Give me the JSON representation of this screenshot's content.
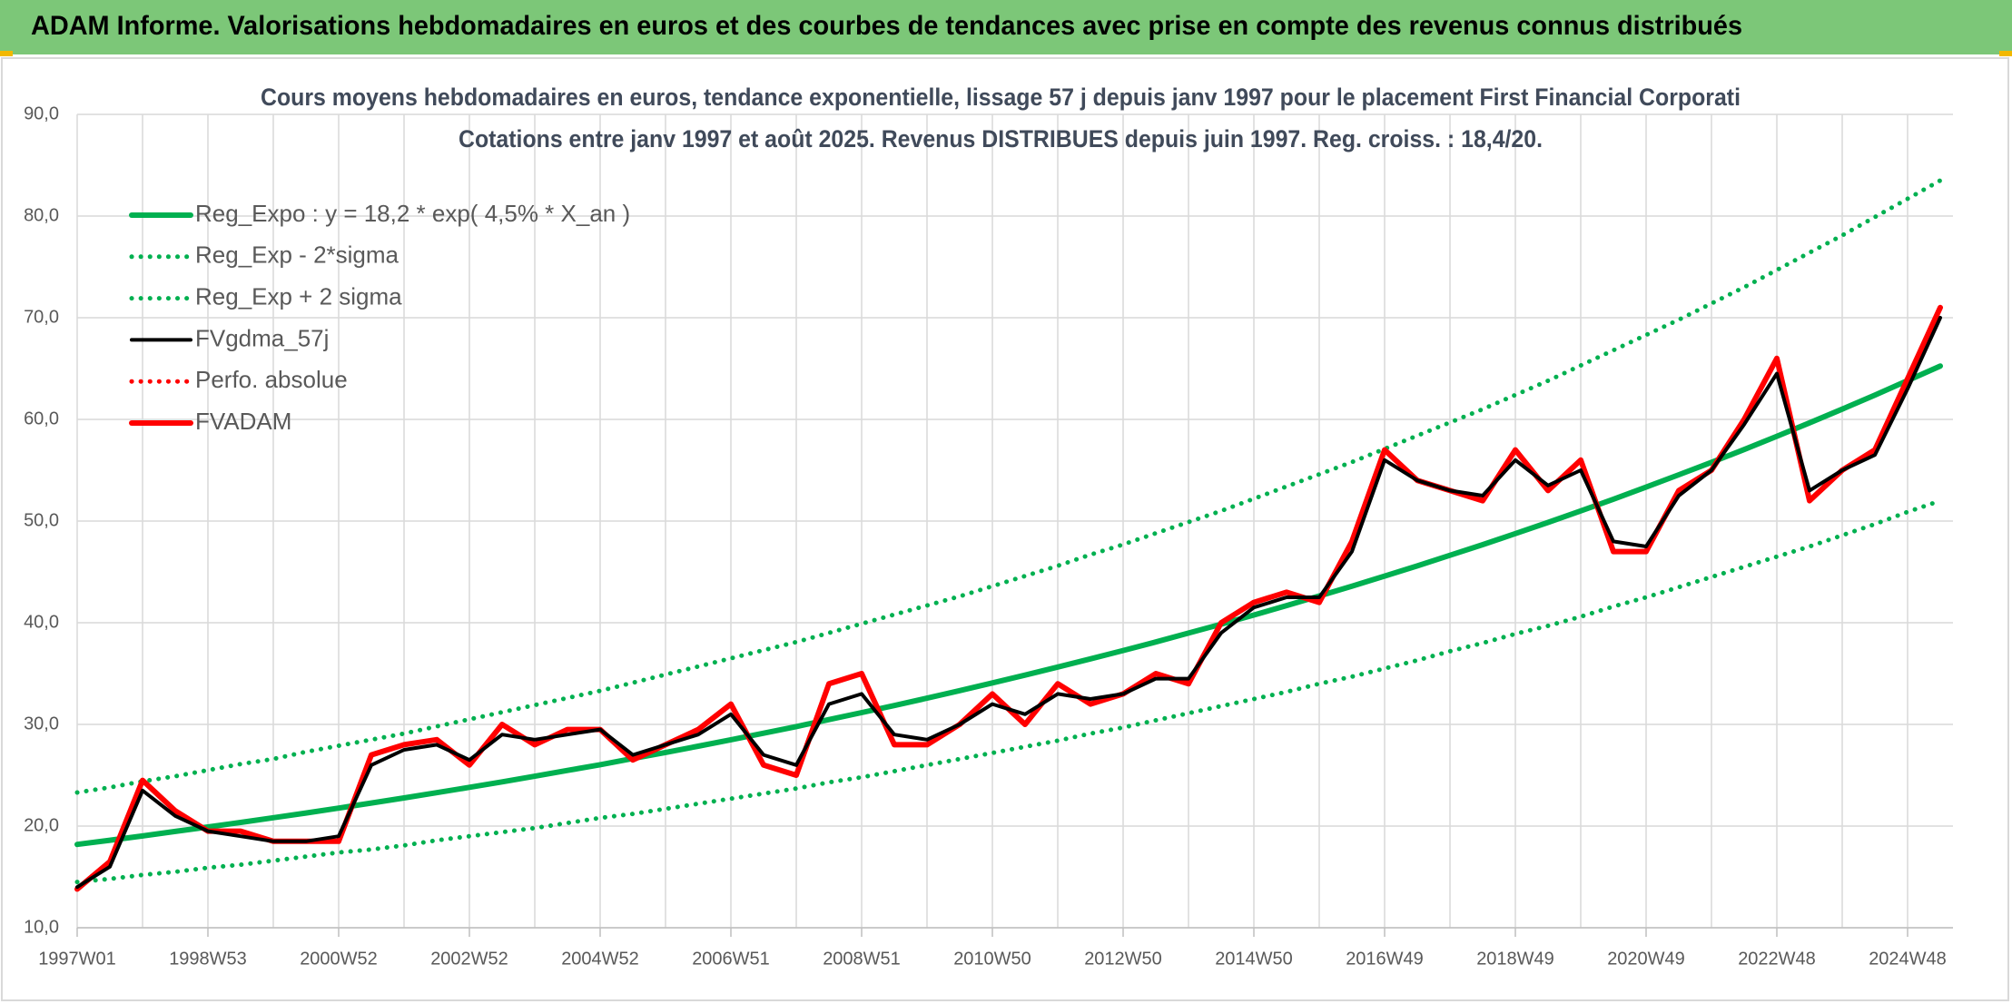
{
  "header": {
    "title": "ADAM Informe. Valorisations hebdomadaires en euros et des courbes de tendances avec prise en compte des revenus connus distribués"
  },
  "chart_data": {
    "type": "line",
    "title": "Cours moyens hebdomadaires en euros, tendance exponentielle, lissage 57 j depuis janv 1997 pour le placement First Financial Corporati",
    "subtitle": "Cotations entre janv 1997 et août 2025. Revenus DISTRIBUES depuis juin 1997. Reg. croiss. : 18,4/20.",
    "categories": [
      "1997W01",
      null,
      null,
      null,
      "1998W53",
      null,
      null,
      null,
      "2000W52",
      null,
      null,
      null,
      "2002W52",
      null,
      null,
      null,
      "2004W52",
      null,
      null,
      null,
      "2006W51",
      null,
      null,
      null,
      "2008W51",
      null,
      null,
      null,
      "2010W50",
      null,
      null,
      null,
      "2012W50",
      null,
      null,
      null,
      "2014W50",
      null,
      null,
      null,
      "2016W49",
      null,
      null,
      null,
      "2018W49",
      null,
      null,
      null,
      "2020W49",
      null,
      null,
      null,
      "2022W48",
      null,
      null,
      null,
      "2024W48",
      null
    ],
    "ylim": [
      10,
      90
    ],
    "yticks": [
      {
        "value": 10,
        "label": "10,0"
      },
      {
        "value": 20,
        "label": "20,0"
      },
      {
        "value": 30,
        "label": "30,0"
      },
      {
        "value": 40,
        "label": "40,0"
      },
      {
        "value": 50,
        "label": "50,0"
      },
      {
        "value": 60,
        "label": "60,0"
      },
      {
        "value": 70,
        "label": "70,0"
      },
      {
        "value": 80,
        "label": "80,0"
      },
      {
        "value": 90,
        "label": "90,0"
      }
    ],
    "grid": true,
    "legend": "upper left",
    "series": [
      {
        "name": "Reg_Expo : y = 18,2 * exp( 4,5% *  X_an )",
        "color": "#00b050",
        "dash": "solid",
        "values": [
          18.2,
          18.61,
          19.03,
          19.47,
          19.91,
          20.36,
          20.82,
          21.29,
          21.77,
          22.27,
          22.77,
          23.29,
          23.81,
          24.35,
          24.9,
          25.47,
          26.04,
          26.64,
          27.24,
          27.86,
          28.49,
          29.13,
          29.79,
          30.47,
          31.16,
          31.86,
          32.58,
          33.32,
          34.08,
          34.85,
          35.64,
          36.45,
          37.27,
          38.11,
          38.98,
          39.86,
          40.76,
          41.69,
          42.63,
          43.6,
          44.59,
          45.59,
          46.63,
          47.68,
          48.77,
          49.87,
          51.0,
          52.15,
          53.34,
          54.55,
          55.78,
          57.04,
          58.34,
          59.66,
          61.01,
          62.39,
          63.81,
          65.25
        ]
      },
      {
        "name": "Reg_Exp - 2*sigma",
        "color": "#00b050",
        "dash": "dotted",
        "values": [
          14.5,
          14.8,
          15.2,
          15.5,
          15.9,
          16.2,
          16.6,
          17.0,
          17.4,
          17.7,
          18.1,
          18.6,
          19.0,
          19.4,
          19.8,
          20.3,
          20.8,
          21.2,
          21.7,
          22.2,
          22.7,
          23.2,
          23.7,
          24.3,
          24.8,
          25.4,
          26.0,
          26.6,
          27.2,
          27.8,
          28.4,
          29.1,
          29.7,
          30.4,
          31.1,
          31.8,
          32.5,
          33.2,
          34.0,
          34.7,
          35.5,
          36.3,
          37.2,
          38.0,
          38.9,
          39.7,
          40.6,
          41.6,
          42.5,
          43.5,
          44.5,
          45.5,
          46.5,
          47.5,
          48.6,
          49.7,
          50.9,
          52.0
        ]
      },
      {
        "name": "Reg_Exp + 2 sigma",
        "color": "#00b050",
        "dash": "dotted",
        "values": [
          23.3,
          23.8,
          24.4,
          24.9,
          25.5,
          26.1,
          26.6,
          27.3,
          27.9,
          28.5,
          29.1,
          29.8,
          30.5,
          31.2,
          31.9,
          32.6,
          33.3,
          34.1,
          34.9,
          35.7,
          36.5,
          37.3,
          38.1,
          39.0,
          39.9,
          40.8,
          41.7,
          42.6,
          43.6,
          44.6,
          45.6,
          46.7,
          47.7,
          48.8,
          49.9,
          51.0,
          52.2,
          53.4,
          54.6,
          55.8,
          57.1,
          58.4,
          59.7,
          61.0,
          62.4,
          63.8,
          65.3,
          66.8,
          68.3,
          69.8,
          71.4,
          73.0,
          74.7,
          76.4,
          78.1,
          79.9,
          81.7,
          83.5
        ]
      },
      {
        "name": "FVgdma_57j",
        "color": "#000000",
        "dash": "solid",
        "values": [
          14,
          16,
          23.5,
          21,
          19.5,
          19,
          18.5,
          18.5,
          19,
          26,
          27.5,
          28,
          26.5,
          29,
          28.5,
          29,
          29.5,
          27,
          28,
          29,
          31,
          27,
          26,
          32,
          33,
          29,
          28.5,
          30,
          32,
          31,
          33,
          32.5,
          33,
          34.5,
          34.5,
          39,
          41.5,
          42.5,
          42.5,
          47,
          56,
          54,
          53,
          52.5,
          56,
          53.5,
          55,
          48,
          47.5,
          52.5,
          55,
          59.5,
          64.5,
          53,
          55,
          56.5,
          63,
          70
        ]
      },
      {
        "name": "Perfo. absolue",
        "color": "#ff0000",
        "dash": "dotted",
        "values": [
          13.8,
          16.5,
          24.5,
          21.5,
          19.5,
          19.5,
          18.5,
          18.5,
          18.5,
          27,
          28,
          28.5,
          26,
          30,
          28,
          29.5,
          29.5,
          26.5,
          28,
          29.5,
          32,
          26,
          25,
          34,
          35,
          28,
          28,
          30,
          33,
          30,
          34,
          32,
          33,
          35,
          34,
          40,
          42,
          43,
          42,
          48,
          57,
          54,
          53,
          52,
          57,
          53,
          56,
          47,
          47,
          53,
          55,
          60,
          66,
          52,
          55,
          57,
          64,
          71
        ]
      },
      {
        "name": "FVADAM",
        "color": "#ff0000",
        "dash": "solid",
        "values": [
          13.8,
          16.5,
          24.5,
          21.5,
          19.5,
          19.5,
          18.5,
          18.5,
          18.5,
          27,
          28,
          28.5,
          26,
          30,
          28,
          29.5,
          29.5,
          26.5,
          28,
          29.5,
          32,
          26,
          25,
          34,
          35,
          28,
          28,
          30,
          33,
          30,
          34,
          32,
          33,
          35,
          34,
          40,
          42,
          43,
          42,
          48,
          57,
          54,
          53,
          52,
          57,
          53,
          56,
          47,
          47,
          53,
          55,
          60,
          66,
          52,
          55,
          57,
          64,
          71
        ]
      }
    ]
  }
}
